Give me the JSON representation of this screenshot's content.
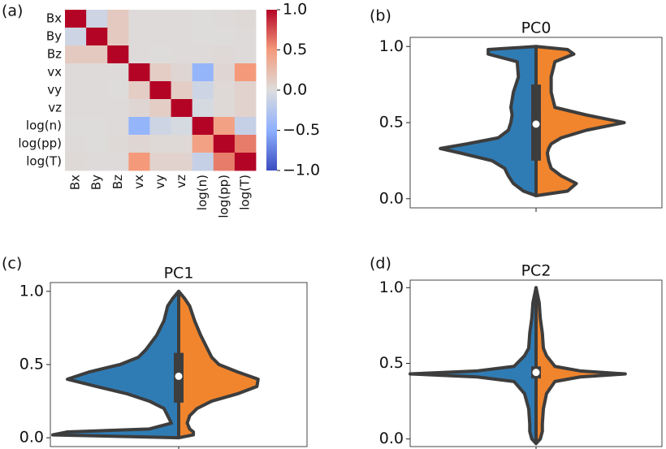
{
  "chart_data": [
    {
      "type": "heatmap",
      "panel_label": "(a)",
      "colormap": "coolwarm",
      "categories": [
        "Bx",
        "By",
        "Bz",
        "vx",
        "vy",
        "vz",
        "log(n)",
        "log(pp)",
        "log(T)"
      ],
      "values": [
        [
          1,
          -0.1,
          0.15,
          0.02,
          0.02,
          0.02,
          0.01,
          0.02,
          0.03
        ],
        [
          -0.1,
          1,
          0.15,
          0.02,
          0.02,
          0.02,
          0.01,
          0.01,
          0.02
        ],
        [
          0.15,
          0.15,
          1,
          0.02,
          0.01,
          0.02,
          0.02,
          0.03,
          0.02
        ],
        [
          0.02,
          0.02,
          0.02,
          1,
          0.12,
          0.05,
          -0.45,
          0.05,
          0.5
        ],
        [
          0.02,
          0.02,
          0.01,
          0.12,
          1,
          0.12,
          -0.1,
          0.03,
          0.08
        ],
        [
          0.02,
          0.02,
          0.02,
          0.05,
          0.12,
          1,
          -0.05,
          0.03,
          0.08
        ],
        [
          0.01,
          0.01,
          0.02,
          -0.45,
          -0.1,
          -0.05,
          1,
          0.45,
          -0.15
        ],
        [
          0.02,
          0.01,
          0.03,
          0.05,
          0.03,
          0.03,
          0.45,
          1,
          0.6
        ],
        [
          0.03,
          0.02,
          0.02,
          0.5,
          0.08,
          0.08,
          -0.15,
          0.6,
          1
        ]
      ],
      "clim": [
        -1,
        1
      ],
      "cticks": [
        {
          "value": 1,
          "label": "1.0"
        },
        {
          "value": 0.5,
          "label": "0.5"
        },
        {
          "value": 0,
          "label": "0.0"
        },
        {
          "value": -0.5,
          "label": "−0.5"
        },
        {
          "value": -1,
          "label": "−1.0"
        }
      ]
    },
    {
      "type": "violin",
      "panel_label": "(b)",
      "title": "PC0",
      "y": [
        0.02,
        0.05,
        0.1,
        0.15,
        0.2,
        0.25,
        0.3,
        0.33,
        0.36,
        0.4,
        0.45,
        0.5,
        0.55,
        0.6,
        0.7,
        0.8,
        0.9,
        0.95,
        0.98,
        1.0
      ],
      "series": [
        {
          "color": "#2f7cb5",
          "values": [
            0,
            0.1,
            0.18,
            0.22,
            0.25,
            0.35,
            0.6,
            0.76,
            0.55,
            0.3,
            0.22,
            0.2,
            0.19,
            0.2,
            0.18,
            0.14,
            0.15,
            0.38,
            0.38,
            0
          ]
        },
        {
          "color": "#f0852d",
          "values": [
            0,
            0.25,
            0.32,
            0.2,
            0.12,
            0.1,
            0.09,
            0.1,
            0.12,
            0.2,
            0.4,
            0.7,
            0.4,
            0.15,
            0.12,
            0.12,
            0.15,
            0.3,
            0.25,
            0
          ]
        }
      ],
      "box": {
        "q1": 0.25,
        "median": 0.49,
        "q3": 0.75
      },
      "whisker": [
        0.02,
        1.0
      ],
      "xlim": [
        -1,
        1
      ],
      "ylim": [
        -0.06,
        1.06
      ],
      "yticks": [
        {
          "value": 0,
          "label": "0.0"
        },
        {
          "value": 0.5,
          "label": "0.5"
        },
        {
          "value": 1,
          "label": "1.0"
        }
      ]
    },
    {
      "type": "violin",
      "panel_label": "(c)",
      "title": "PC1",
      "y": [
        0,
        0.02,
        0.04,
        0.06,
        0.1,
        0.15,
        0.2,
        0.25,
        0.3,
        0.35,
        0.4,
        0.45,
        0.5,
        0.55,
        0.6,
        0.7,
        0.8,
        0.9,
        0.95,
        1.0
      ],
      "series": [
        {
          "color": "#2f7cb5",
          "values": [
            0,
            1.03,
            0.91,
            0.24,
            0.06,
            0.09,
            0.12,
            0.24,
            0.42,
            0.67,
            0.91,
            0.73,
            0.48,
            0.33,
            0.27,
            0.18,
            0.12,
            0.09,
            0.05,
            0
          ]
        },
        {
          "color": "#f0852d",
          "values": [
            0,
            0.12,
            0.12,
            0.09,
            0.07,
            0.09,
            0.15,
            0.27,
            0.48,
            0.64,
            0.65,
            0.48,
            0.33,
            0.27,
            0.24,
            0.18,
            0.13,
            0.09,
            0.05,
            0
          ]
        }
      ],
      "box": {
        "q1": 0.24,
        "median": 0.42,
        "q3": 0.58
      },
      "whisker": [
        0,
        1.0
      ],
      "xlim": [
        -1.05,
        1.05
      ],
      "ylim": [
        -0.06,
        1.06
      ],
      "yticks": [
        {
          "value": 0,
          "label": "0.0"
        },
        {
          "value": 0.5,
          "label": "0.5"
        },
        {
          "value": 1,
          "label": "1.0"
        }
      ]
    },
    {
      "type": "violin",
      "panel_label": "(d)",
      "title": "PC2",
      "y": [
        -0.03,
        0.0,
        0.05,
        0.1,
        0.2,
        0.3,
        0.38,
        0.41,
        0.43,
        0.45,
        0.48,
        0.55,
        0.6,
        0.7,
        0.8,
        0.9,
        1.0
      ],
      "series": [
        {
          "color": "#2f7cb5",
          "values": [
            0,
            0.04,
            0.06,
            0.06,
            0.07,
            0.11,
            0.21,
            0.56,
            1.2,
            0.56,
            0.21,
            0.11,
            0.07,
            0.06,
            0.04,
            0.03,
            0
          ]
        },
        {
          "color": "#f0852d",
          "values": [
            0,
            0.04,
            0.06,
            0.06,
            0.07,
            0.1,
            0.18,
            0.42,
            0.85,
            0.42,
            0.18,
            0.1,
            0.07,
            0.06,
            0.04,
            0.03,
            0
          ]
        }
      ],
      "box": {
        "q1": 0.4,
        "median": 0.44,
        "q3": 0.48
      },
      "whisker": [
        -0.03,
        1.0
      ],
      "xlim": [
        -1.2,
        1.2
      ],
      "ylim": [
        -0.05,
        1.05
      ],
      "yticks": [
        {
          "value": 0,
          "label": "0.0"
        },
        {
          "value": 0.5,
          "label": "0.5"
        },
        {
          "value": 1,
          "label": "1.0"
        }
      ]
    }
  ]
}
